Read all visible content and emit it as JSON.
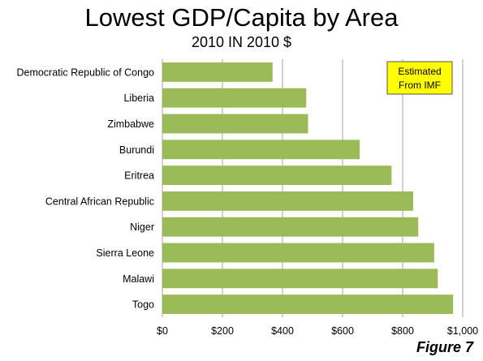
{
  "title": "Lowest GDP/Capita by Area",
  "subtitle": "2010 IN 2010 $",
  "figure_label": "Figure 7",
  "annotation": {
    "line1": "Estimated",
    "line2": "From IMF"
  },
  "colors": {
    "bar": "#9bbb59",
    "annotation_bg": "#ffff00",
    "grid": "#a6a6a6"
  },
  "chart_data": {
    "type": "bar",
    "orientation": "horizontal",
    "categories": [
      "Democratic Republic of Congo",
      "Liberia",
      "Zimbabwe",
      "Burundi",
      "Eritrea",
      "Central African Republic",
      "Niger",
      "Sierra Leone",
      "Malawi",
      "Togo"
    ],
    "values": [
      367,
      479,
      485,
      657,
      763,
      835,
      852,
      905,
      917,
      968
    ],
    "xlim": [
      0,
      1000
    ],
    "x_ticks": [
      0,
      200,
      400,
      600,
      800,
      1000
    ],
    "x_tick_labels": [
      "$0",
      "$200",
      "$400",
      "$600",
      "$800",
      "$1,000"
    ],
    "grid": true,
    "legend": "none"
  }
}
